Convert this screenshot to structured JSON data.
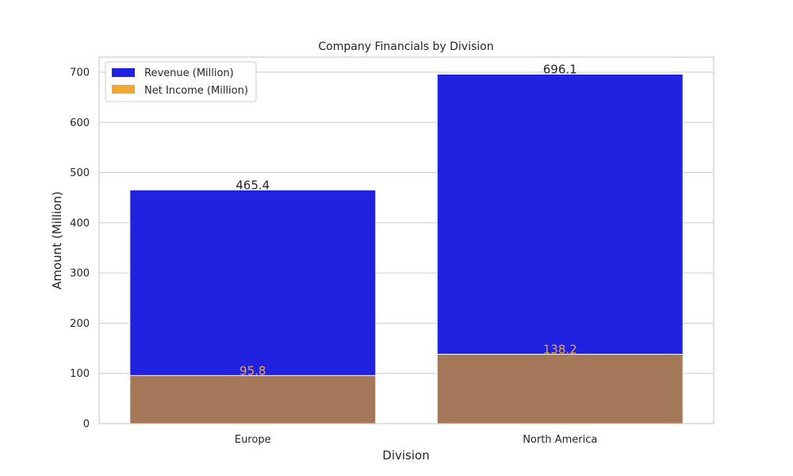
{
  "chart_data": {
    "type": "bar",
    "title": "Company Financials by Division",
    "xlabel": "Division",
    "ylabel": "Amount (Million)",
    "categories": [
      "Europe",
      "North America"
    ],
    "ylim": [
      0,
      730
    ],
    "yticks": [
      0,
      100,
      200,
      300,
      400,
      500,
      600,
      700
    ],
    "grid": true,
    "legend_position": "top-left",
    "overlay": true,
    "series": [
      {
        "name": "Revenue (Million)",
        "values": [
          465.4,
          696.1
        ],
        "color": "#2121e0",
        "label_color": "#262626",
        "labels": [
          "465.4",
          "696.1"
        ]
      },
      {
        "name": "Net Income (Million)",
        "values": [
          95.8,
          138.2
        ],
        "color": "#f0a830",
        "display_color": "#a6785a",
        "label_color": "#f0a830",
        "labels": [
          "95.8",
          "138.2"
        ]
      }
    ]
  }
}
